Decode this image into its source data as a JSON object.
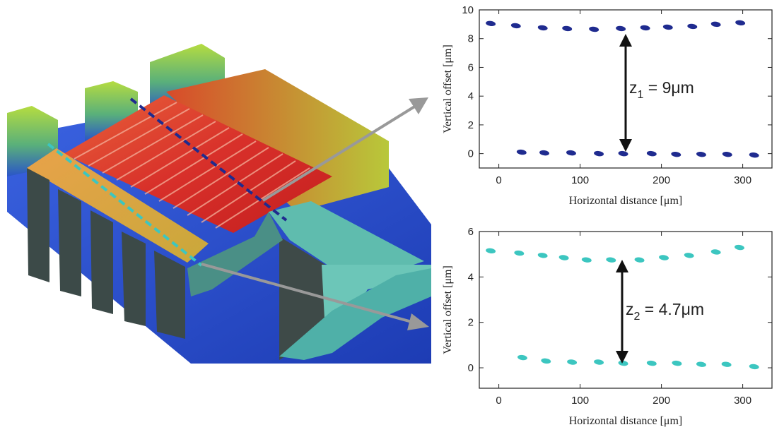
{
  "chart_data": [
    {
      "type": "scatter",
      "xlabel": "Horizontal distance [μm]",
      "ylabel": "Vertical offset [μm]",
      "xlim": [
        -24,
        336
      ],
      "xticks": [
        0,
        100,
        200,
        300
      ],
      "ylim": [
        -1,
        10
      ],
      "yticks": [
        0,
        2,
        4,
        6,
        8,
        10
      ],
      "annotation": {
        "text": "z",
        "sub": "1",
        "rest": " = 9μm"
      },
      "series": [
        {
          "color": "#1f2b8f",
          "x": [
            -10,
            21,
            54,
            84,
            117,
            150,
            180,
            208,
            238,
            267,
            297
          ],
          "values": [
            9.05,
            8.9,
            8.75,
            8.7,
            8.65,
            8.7,
            8.75,
            8.8,
            8.85,
            9.0,
            9.1
          ]
        },
        {
          "color": "#1f2b8f",
          "x": [
            28,
            56,
            89,
            123,
            153,
            188,
            218,
            249,
            281,
            314
          ],
          "values": [
            0.1,
            0.05,
            0.05,
            0.0,
            0.0,
            0.0,
            -0.05,
            -0.05,
            -0.05,
            -0.1
          ]
        }
      ]
    },
    {
      "type": "scatter",
      "xlabel": "Horizontal distance [μm]",
      "ylabel": "Vertical offset [μm]",
      "xlim": [
        -24,
        336
      ],
      "xticks": [
        0,
        100,
        200,
        300
      ],
      "ylim": [
        -0.9,
        6
      ],
      "yticks": [
        0,
        2,
        4,
        6
      ],
      "annotation": {
        "text": "z",
        "sub": "2",
        "rest": " = 4.7μm"
      },
      "series": [
        {
          "color": "#3cc6c0",
          "x": [
            -10,
            25,
            54,
            80,
            108,
            138,
            173,
            203,
            234,
            267,
            296
          ],
          "values": [
            5.15,
            5.05,
            4.95,
            4.85,
            4.75,
            4.75,
            4.75,
            4.85,
            4.95,
            5.1,
            5.3
          ]
        },
        {
          "color": "#3cc6c0",
          "x": [
            29,
            58,
            90,
            123,
            153,
            188,
            219,
            249,
            280,
            314
          ],
          "values": [
            0.45,
            0.3,
            0.25,
            0.25,
            0.2,
            0.2,
            0.2,
            0.15,
            0.15,
            0.05
          ]
        }
      ]
    }
  ]
}
